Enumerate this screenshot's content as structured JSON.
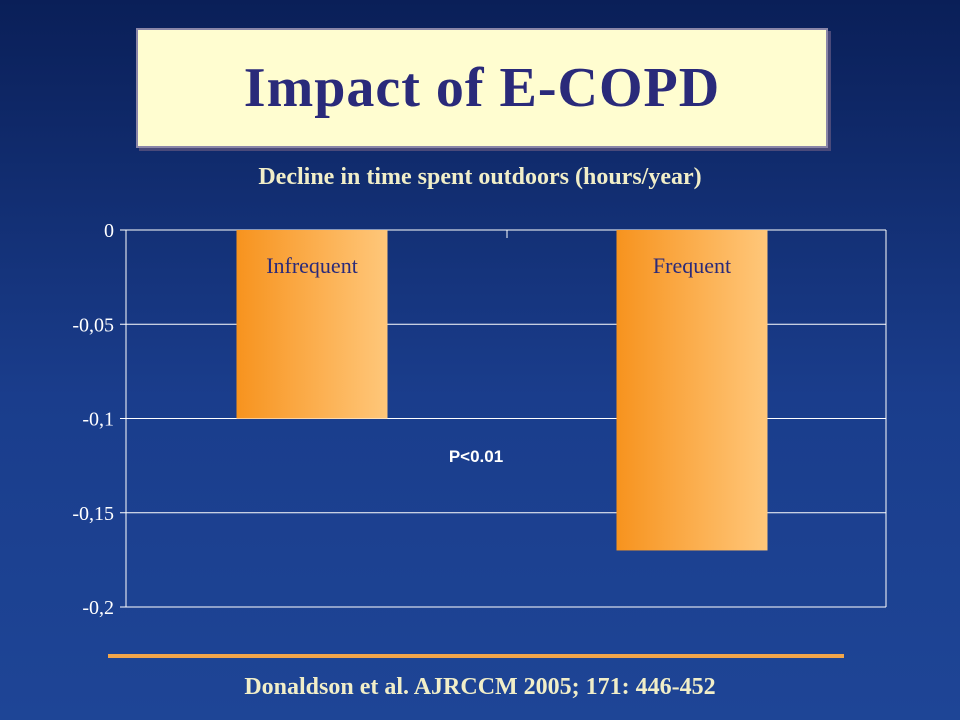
{
  "slide": {
    "title": "Impact of E-COPD",
    "citation": "Donaldson et al. AJRCCM 2005; 171: 446-452"
  },
  "colors": {
    "bar_left": "#f7931e",
    "bar_right": "#ffc77a",
    "grid": "#ffffff",
    "text": "#ffffff",
    "title_text": "#2a2a7a",
    "title_bg": "#fffdd0",
    "divider": "#f2a64a"
  },
  "chart_data": {
    "type": "bar",
    "title": "Decline in time spent outdoors (hours/year)",
    "categories": [
      "Infrequent",
      "Frequent"
    ],
    "values": [
      -0.1,
      -0.17
    ],
    "ylim": [
      -0.2,
      0
    ],
    "yticks": [
      0,
      -0.05,
      -0.1,
      -0.15,
      -0.2
    ],
    "ytick_labels": [
      "0",
      "-0,05",
      "-0,1",
      "-0,15",
      "-0,2"
    ],
    "xlabel": "",
    "ylabel": "",
    "grid": true,
    "annotation": "P<0.01"
  }
}
